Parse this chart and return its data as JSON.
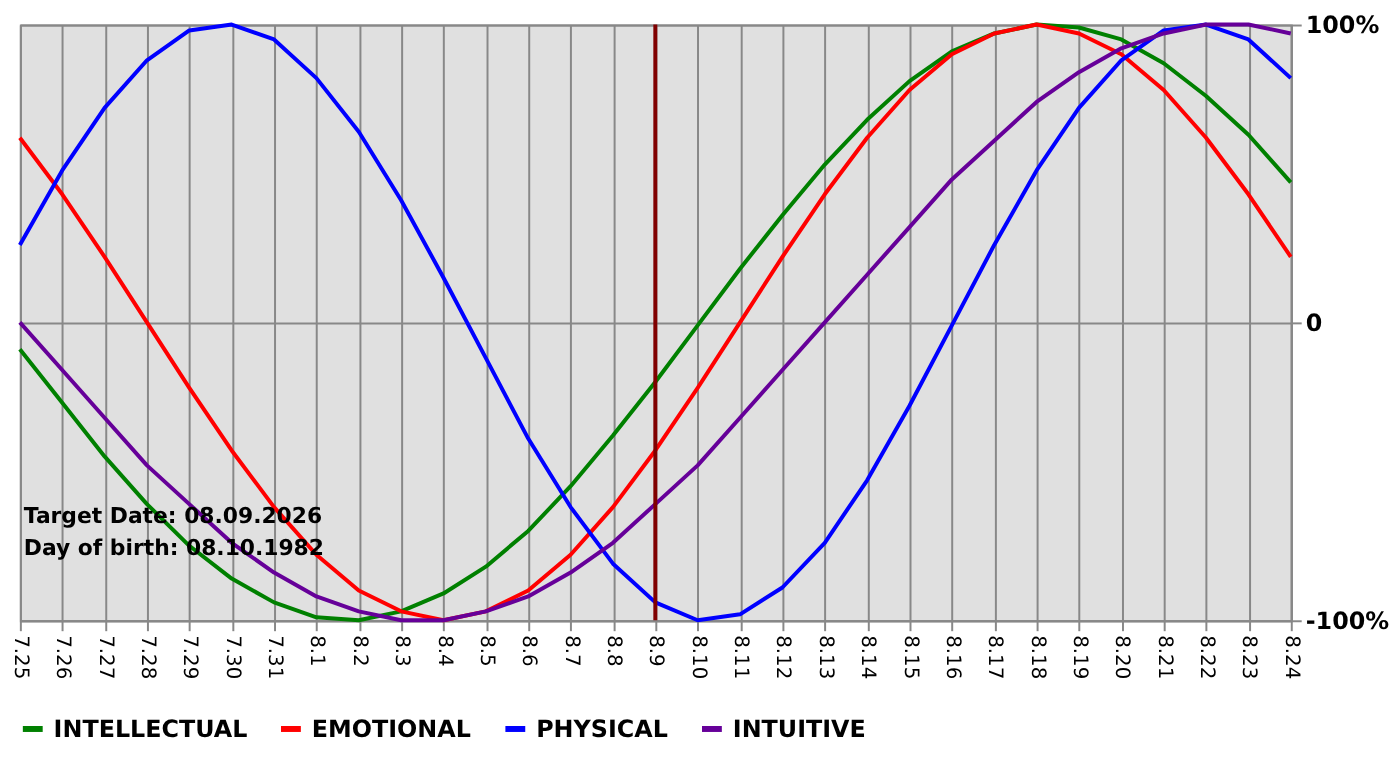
{
  "chart_data": {
    "type": "line",
    "categories": [
      "7.25",
      "7.26",
      "7.27",
      "7.28",
      "7.29",
      "7.30",
      "7.31",
      "8.1",
      "8.2",
      "8.3",
      "8.4",
      "8.5",
      "8.6",
      "8.7",
      "8.8",
      "8.9",
      "8.10",
      "8.11",
      "8.12",
      "8.13",
      "8.14",
      "8.15",
      "8.16",
      "8.17",
      "8.18",
      "8.19",
      "8.20",
      "8.21",
      "8.22",
      "8.23",
      "8.24"
    ],
    "series": [
      {
        "name": "INTELLECTUAL",
        "color": "#008000",
        "values": [
          -9,
          -27,
          -45,
          -61,
          -75,
          -86,
          -94,
          -99,
          -100,
          -97,
          -91,
          -82,
          -70,
          -55,
          -38,
          -20,
          -1,
          18,
          36,
          53,
          68,
          81,
          91,
          97,
          100,
          99,
          95,
          87,
          76,
          63,
          47
        ]
      },
      {
        "name": "EMOTIONAL",
        "color": "#ff0000",
        "values": [
          62,
          43,
          22,
          0,
          -22,
          -43,
          -62,
          -78,
          -90,
          -97,
          -100,
          -97,
          -90,
          -78,
          -62,
          -43,
          -22,
          0,
          22,
          43,
          62,
          78,
          90,
          97,
          100,
          97,
          90,
          78,
          62,
          43,
          22
        ]
      },
      {
        "name": "PHYSICAL",
        "color": "#0000ff",
        "values": [
          26,
          51,
          72,
          88,
          98,
          100,
          95,
          82,
          64,
          41,
          15,
          -12,
          -39,
          -62,
          -81,
          -94,
          -100,
          -98,
          -89,
          -74,
          -53,
          -28,
          -1,
          26,
          51,
          72,
          88,
          98,
          100,
          95,
          82
        ]
      },
      {
        "name": "INTUITIVE",
        "color": "#660099",
        "values": [
          0,
          -16,
          -32,
          -48,
          -61,
          -74,
          -84,
          -92,
          -97,
          -100,
          -100,
          -97,
          -92,
          -84,
          -74,
          -61,
          -48,
          -32,
          -16,
          0,
          16,
          32,
          48,
          61,
          74,
          84,
          92,
          97,
          100,
          100,
          97
        ]
      }
    ],
    "ylim": [
      -100,
      100
    ],
    "yticks": [
      {
        "value": -100,
        "label": "-100%"
      },
      0,
      {
        "value": 100,
        "label": "100%"
      }
    ],
    "ref_lines": [
      {
        "axis": "x",
        "value": "8.9",
        "color": "#800000"
      }
    ],
    "annotations": [
      "Target Date: 08.09.2026",
      "Day of birth: 08.10.1982"
    ],
    "grid": true,
    "legend": "bottom",
    "marker": "none",
    "line_style": "solid"
  }
}
